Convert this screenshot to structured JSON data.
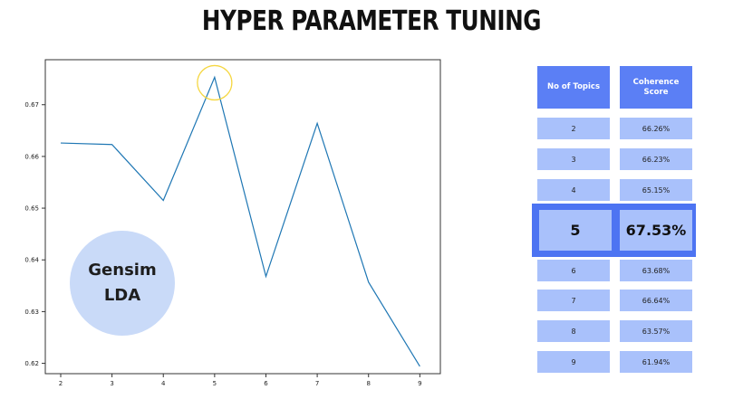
{
  "title": "HYPER PARAMETER TUNING",
  "badge": {
    "line1": "Gensim",
    "line2": "LDA"
  },
  "colors": {
    "line": "#1f77b4",
    "highlight_ring": "#f5d742",
    "table_header": "#5b7ff5",
    "table_cell": "#a9c1fb",
    "highlight_frame": "#4d74f2",
    "badge_bg": "#c9daf8"
  },
  "chart_data": {
    "type": "line",
    "x": [
      2,
      3,
      4,
      5,
      6,
      7,
      8,
      9
    ],
    "y": [
      0.6626,
      0.6623,
      0.6515,
      0.6753,
      0.6368,
      0.6664,
      0.6357,
      0.6194
    ],
    "x_ticks": [
      2,
      3,
      4,
      5,
      6,
      7,
      8,
      9
    ],
    "y_ticks": [
      0.62,
      0.63,
      0.64,
      0.65,
      0.66,
      0.67
    ],
    "xlim": [
      1.7,
      9.4
    ],
    "ylim": [
      0.618,
      0.6787
    ],
    "title": "",
    "xlabel": "",
    "ylabel": "",
    "grid": false,
    "highlight_x": 5
  },
  "table": {
    "headers": [
      "No of Topics",
      "Coherence Score"
    ],
    "rows": [
      [
        "2",
        "66.26%"
      ],
      [
        "3",
        "66.23%"
      ],
      [
        "4",
        "65.15%"
      ],
      [
        "5",
        "67.53%"
      ],
      [
        "6",
        "63.68%"
      ],
      [
        "7",
        "66.64%"
      ],
      [
        "8",
        "63.57%"
      ],
      [
        "9",
        "61.94%"
      ]
    ],
    "highlight_row": 3
  }
}
